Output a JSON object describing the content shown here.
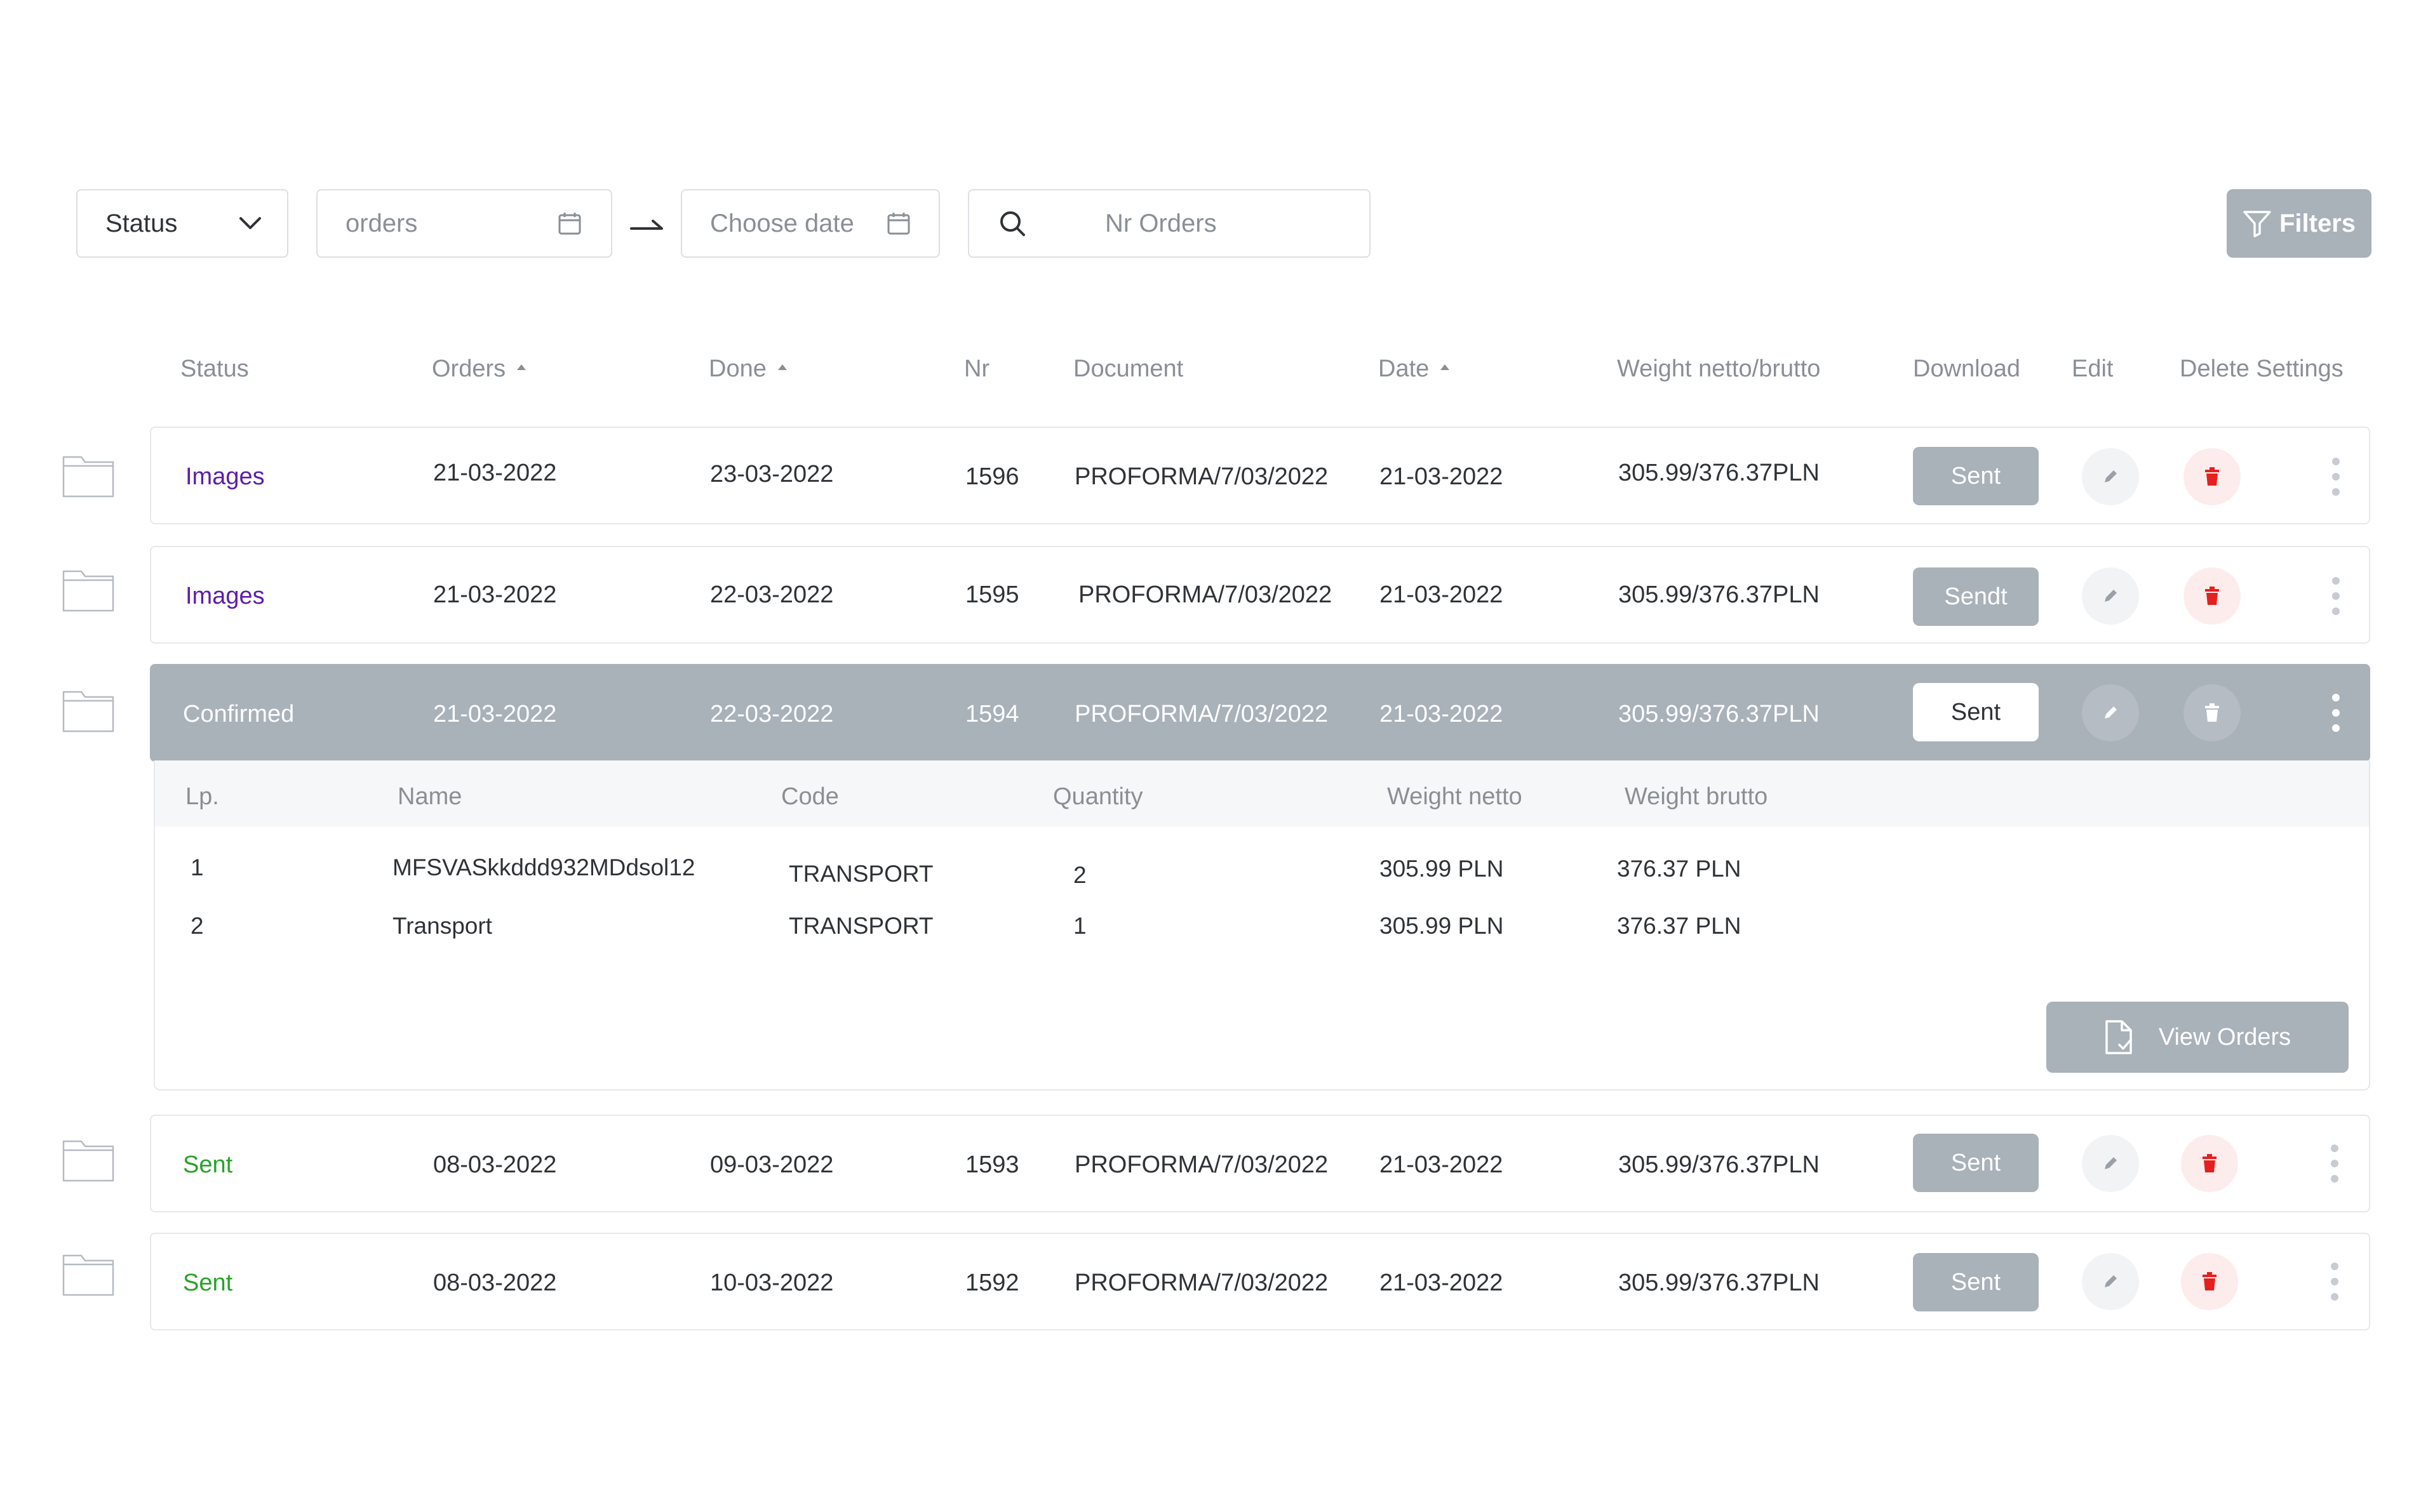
{
  "filters": {
    "status_label": "Status",
    "date_from": "orders",
    "date_to_placeholder": "Choose date",
    "search_placeholder": "Nr Orders",
    "filters_label": "Filters"
  },
  "columns": {
    "status": "Status",
    "orders": "Orders",
    "done": "Done",
    "nr": "Nr",
    "document": "Document",
    "date": "Date",
    "weight": "Weight netto/brutto",
    "download": "Download",
    "edit": "Edit",
    "delete_settings": "Delete Settings"
  },
  "rows": [
    {
      "status": "Images",
      "orders": "21-03-2022",
      "done": "23-03-2022",
      "nr": "1596",
      "document": "PROFORMA/7/03/2022",
      "date": "21-03-2022",
      "weight": "305.99/376.37PLN",
      "download": "Sent"
    },
    {
      "status": "Images",
      "orders": "21-03-2022",
      "done": "22-03-2022",
      "nr": "1595",
      "document": "PROFORMA/7/03/2022",
      "date": "21-03-2022",
      "weight": "305.99/376.37PLN",
      "download": "Sendt"
    },
    {
      "status": "Confirmed",
      "orders": "21-03-2022",
      "done": "22-03-2022",
      "nr": "1594",
      "document": "PROFORMA/7/03/2022",
      "date": "21-03-2022",
      "weight": "305.99/376.37PLN",
      "download": "Sent"
    },
    {
      "status": "Sent",
      "orders": "08-03-2022",
      "done": "09-03-2022",
      "nr": "1593",
      "document": "PROFORMA/7/03/2022",
      "date": "21-03-2022",
      "weight": "305.99/376.37PLN",
      "download": "Sent"
    },
    {
      "status": "Sent",
      "orders": "08-03-2022",
      "done": "10-03-2022",
      "nr": "1592",
      "document": "PROFORMA/7/03/2022",
      "date": "21-03-2022",
      "weight": "305.99/376.37PLN",
      "download": "Sent"
    }
  ],
  "detail": {
    "columns": {
      "lp": "Lp.",
      "name": "Name",
      "code": "Code",
      "quantity": "Quantity",
      "weight_netto": "Weight netto",
      "weight_brutto": "Weight brutto"
    },
    "items": [
      {
        "lp": "1",
        "name": "MFSVASkkddd932MDdsol12",
        "code": "TRANSPORT",
        "quantity": "2",
        "weight_netto": "305.99 PLN",
        "weight_brutto": "376.37 PLN"
      },
      {
        "lp": "2",
        "name": "Transport",
        "code": "TRANSPORT",
        "quantity": "1",
        "weight_netto": "305.99 PLN",
        "weight_brutto": "376.37 PLN"
      }
    ],
    "view_orders_label": "View Orders"
  },
  "colors": {
    "accent_gray": "#a9b1b9",
    "status_images": "#5c1ea8",
    "status_sent": "#2aa22a",
    "delete_red": "#e5201e"
  }
}
